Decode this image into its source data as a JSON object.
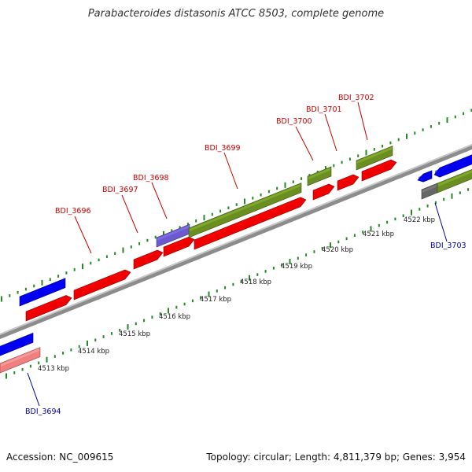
{
  "title": "Parabacteroides distasonis ATCC 8503, complete genome",
  "footer": {
    "accession": "Accession: NC_009615",
    "summary": "Topology: circular; Length: 4,811,379 bp; Genes: 3,954"
  },
  "colors": {
    "forward_label": "#cc0000",
    "reverse_label": "#0000aa",
    "backbone": "#8c8c8c",
    "tick": "#228b22"
  },
  "kbp_labels": [
    "4513 kbp",
    "4514 kbp",
    "4515 kbp",
    "4516 kbp",
    "4517 kbp",
    "4518 kbp",
    "4519 kbp",
    "4520 kbp",
    "4521 kbp",
    "4522 kbp"
  ],
  "gene_labels": [
    {
      "text": "BDI_3696",
      "strand": "forward"
    },
    {
      "text": "BDI_3697",
      "strand": "forward"
    },
    {
      "text": "BDI_3698",
      "strand": "forward"
    },
    {
      "text": "BDI_3699",
      "strand": "forward"
    },
    {
      "text": "BDI_3700",
      "strand": "forward"
    },
    {
      "text": "BDI_3701",
      "strand": "forward"
    },
    {
      "text": "BDI_3702",
      "strand": "forward"
    },
    {
      "text": "BDI_3703",
      "strand": "reverse"
    },
    {
      "text": "BDI_3694",
      "strand": "reverse"
    }
  ],
  "features": [
    {
      "id": "f-blue-left-top",
      "color": "#0000ee",
      "kind": "gene"
    },
    {
      "id": "f-red-1",
      "color": "#ee0000",
      "kind": "cds"
    },
    {
      "id": "f-red-2",
      "color": "#ee0000",
      "kind": "cds"
    },
    {
      "id": "f-red-3",
      "color": "#ee0000",
      "kind": "cds"
    },
    {
      "id": "f-red-4",
      "color": "#ee0000",
      "kind": "cds"
    },
    {
      "id": "f-purple",
      "color": "#6a5acd",
      "kind": "gene"
    },
    {
      "id": "f-red-long",
      "color": "#ee0000",
      "kind": "cds"
    },
    {
      "id": "f-green-long",
      "color": "#6b8e23",
      "kind": "gene"
    },
    {
      "id": "f-red-5",
      "color": "#ee0000",
      "kind": "cds"
    },
    {
      "id": "f-green-2",
      "color": "#6b8e23",
      "kind": "gene"
    },
    {
      "id": "f-red-6",
      "color": "#ee0000",
      "kind": "cds"
    },
    {
      "id": "f-red-7",
      "color": "#ee0000",
      "kind": "cds"
    },
    {
      "id": "f-green-3",
      "color": "#6b8e23",
      "kind": "gene"
    },
    {
      "id": "f-blue-right-small",
      "color": "#0000ee",
      "kind": "cds"
    },
    {
      "id": "f-blue-right",
      "color": "#0000ee",
      "kind": "gene"
    },
    {
      "id": "f-grey-right",
      "color": "#666666",
      "kind": "cds"
    },
    {
      "id": "f-green-right",
      "color": "#6b8e23",
      "kind": "gene"
    },
    {
      "id": "f-blue-left-bottom",
      "color": "#0000ee",
      "kind": "gene"
    },
    {
      "id": "f-pink-left",
      "color": "#f08080",
      "kind": "cds"
    }
  ]
}
